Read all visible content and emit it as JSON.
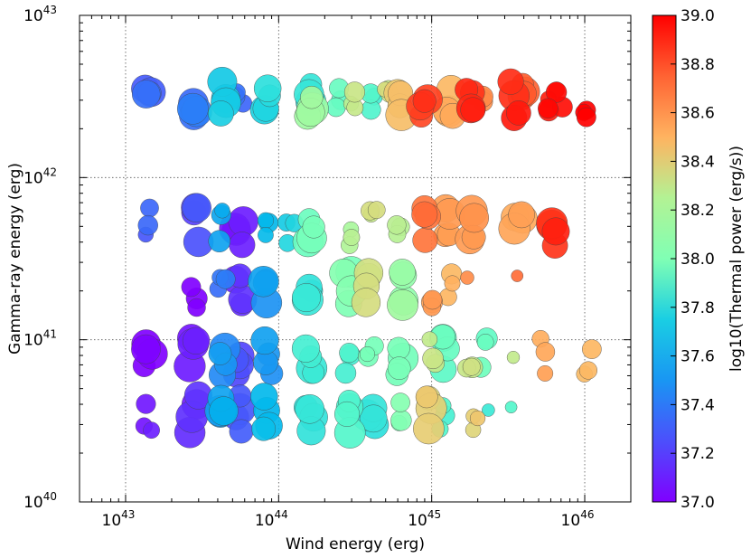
{
  "chart_data": {
    "type": "scatter",
    "title": "",
    "xlabel": "Wind energy (erg)",
    "ylabel": "Gamma-ray energy (erg)",
    "xscale": "log",
    "yscale": "log",
    "xlim": [
      5e+42,
      2e+46
    ],
    "ylim": [
      1e+40,
      1e+43
    ],
    "x_ticks": [
      {
        "base": "10",
        "exp": "43"
      },
      {
        "base": "10",
        "exp": "44"
      },
      {
        "base": "10",
        "exp": "45"
      },
      {
        "base": "10",
        "exp": "46"
      }
    ],
    "y_ticks": [
      {
        "base": "10",
        "exp": "40"
      },
      {
        "base": "10",
        "exp": "41"
      },
      {
        "base": "10",
        "exp": "42"
      },
      {
        "base": "10",
        "exp": "43"
      }
    ],
    "grid": true,
    "colorbar": {
      "label": "log10(Thermal power (erg/s))",
      "range": [
        37.0,
        39.0
      ],
      "ticks": [
        "37.0",
        "37.2",
        "37.4",
        "37.6",
        "37.8",
        "38.0",
        "38.2",
        "38.4",
        "38.6",
        "38.8",
        "39.0"
      ],
      "colormap": "rainbow"
    },
    "clusters": [
      {
        "name": "row-1",
        "y_center": 3e+42,
        "y_spread": 0.12,
        "points": [
          {
            "x": 1.4e+43,
            "c": 37.25,
            "s": 3
          },
          {
            "x": 2.8e+43,
            "c": 37.3,
            "s": 3
          },
          {
            "x": 4.3e+43,
            "c": 37.6,
            "s": 3
          },
          {
            "x": 5.5e+43,
            "c": 37.3,
            "s": 2
          },
          {
            "x": 8.5e+43,
            "c": 37.65,
            "s": 3
          },
          {
            "x": 1.6e+44,
            "c": 37.7,
            "s": 3
          },
          {
            "x": 1.6e+44,
            "c": 38.1,
            "s": 3
          },
          {
            "x": 3e+44,
            "c": 38.25,
            "s": 2
          },
          {
            "x": 4e+44,
            "c": 37.8,
            "s": 2
          },
          {
            "x": 6.3e+44,
            "c": 38.45,
            "s": 3
          },
          {
            "x": 9e+44,
            "c": 38.85,
            "s": 3
          },
          {
            "x": 1.3e+45,
            "c": 38.5,
            "s": 3
          },
          {
            "x": 1.8e+45,
            "c": 38.9,
            "s": 3
          },
          {
            "x": 2.2e+45,
            "c": 38.6,
            "s": 2
          },
          {
            "x": 3.5e+45,
            "c": 38.9,
            "s": 3
          },
          {
            "x": 3.8e+45,
            "c": 38.75,
            "s": 3
          },
          {
            "x": 5.5e+45,
            "c": 38.95,
            "s": 2
          },
          {
            "x": 6.8e+45,
            "c": 38.95,
            "s": 2
          },
          {
            "x": 1.05e+46,
            "c": 39.0,
            "s": 2
          },
          {
            "x": 2.5e+44,
            "c": 37.9,
            "s": 2
          },
          {
            "x": 5e+44,
            "c": 38.3,
            "s": 2
          }
        ]
      },
      {
        "name": "row-2",
        "y_center": 5e+41,
        "y_spread": 0.12,
        "points": [
          {
            "x": 1.4e+43,
            "c": 37.25,
            "s": 2
          },
          {
            "x": 2.8e+43,
            "c": 37.2,
            "s": 3
          },
          {
            "x": 4.3e+43,
            "c": 37.45,
            "s": 2
          },
          {
            "x": 5.5e+43,
            "c": 37.05,
            "s": 3
          },
          {
            "x": 8.5e+43,
            "c": 37.55,
            "s": 2
          },
          {
            "x": 1.6e+44,
            "c": 37.95,
            "s": 3
          },
          {
            "x": 3e+44,
            "c": 38.2,
            "s": 2
          },
          {
            "x": 4.2e+44,
            "c": 38.3,
            "s": 2
          },
          {
            "x": 6.3e+44,
            "c": 38.2,
            "s": 2
          },
          {
            "x": 9e+44,
            "c": 38.7,
            "s": 3
          },
          {
            "x": 1.3e+45,
            "c": 38.55,
            "s": 3
          },
          {
            "x": 1.9e+45,
            "c": 38.6,
            "s": 3
          },
          {
            "x": 3.7e+45,
            "c": 38.55,
            "s": 3
          },
          {
            "x": 6.5e+45,
            "c": 38.9,
            "s": 3
          },
          {
            "x": 1.2e+44,
            "c": 37.6,
            "s": 2
          }
        ]
      },
      {
        "name": "row-3",
        "y_center": 2e+41,
        "y_spread": 0.12,
        "points": [
          {
            "x": 2.8e+43,
            "c": 37.0,
            "s": 2
          },
          {
            "x": 4.3e+43,
            "c": 37.3,
            "s": 2
          },
          {
            "x": 5.5e+43,
            "c": 37.1,
            "s": 3
          },
          {
            "x": 8.5e+43,
            "c": 37.4,
            "s": 3
          },
          {
            "x": 1.6e+44,
            "c": 37.7,
            "s": 3
          },
          {
            "x": 2.8e+44,
            "c": 38.0,
            "s": 3
          },
          {
            "x": 3.8e+44,
            "c": 38.3,
            "s": 3
          },
          {
            "x": 6.3e+44,
            "c": 38.1,
            "s": 3
          },
          {
            "x": 1e+45,
            "c": 38.6,
            "s": 2
          },
          {
            "x": 1.3e+45,
            "c": 38.5,
            "s": 2
          },
          {
            "x": 1.8e+45,
            "c": 38.65,
            "s": 1
          },
          {
            "x": 3.5e+45,
            "c": 38.7,
            "s": 1
          }
        ]
      },
      {
        "name": "row-4",
        "y_center": 8e+40,
        "y_spread": 0.12,
        "points": [
          {
            "x": 1.4e+43,
            "c": 37.0,
            "s": 3
          },
          {
            "x": 2.8e+43,
            "c": 37.05,
            "s": 3
          },
          {
            "x": 4.3e+43,
            "c": 37.4,
            "s": 3
          },
          {
            "x": 5.5e+43,
            "c": 37.2,
            "s": 3
          },
          {
            "x": 8.5e+43,
            "c": 37.4,
            "s": 3
          },
          {
            "x": 1.6e+44,
            "c": 37.75,
            "s": 3
          },
          {
            "x": 2.8e+44,
            "c": 37.8,
            "s": 2
          },
          {
            "x": 4e+44,
            "c": 38.0,
            "s": 2
          },
          {
            "x": 6.3e+44,
            "c": 37.95,
            "s": 3
          },
          {
            "x": 1e+45,
            "c": 38.3,
            "s": 2
          },
          {
            "x": 1.2e+45,
            "c": 37.9,
            "s": 3
          },
          {
            "x": 1.8e+45,
            "c": 38.3,
            "s": 2
          },
          {
            "x": 2.2e+45,
            "c": 37.9,
            "s": 2
          },
          {
            "x": 3.3e+45,
            "c": 38.3,
            "s": 1
          },
          {
            "x": 5.3e+45,
            "c": 38.55,
            "s": 2
          },
          {
            "x": 1.05e+46,
            "c": 38.5,
            "s": 2
          }
        ]
      },
      {
        "name": "row-5",
        "y_center": 3.5e+40,
        "y_spread": 0.12,
        "points": [
          {
            "x": 1.4e+43,
            "c": 37.05,
            "s": 2
          },
          {
            "x": 2.8e+43,
            "c": 37.1,
            "s": 3
          },
          {
            "x": 4.3e+43,
            "c": 37.45,
            "s": 3
          },
          {
            "x": 5.5e+43,
            "c": 37.2,
            "s": 3
          },
          {
            "x": 8.5e+43,
            "c": 37.5,
            "s": 3
          },
          {
            "x": 1.6e+44,
            "c": 37.7,
            "s": 3
          },
          {
            "x": 2.9e+44,
            "c": 37.8,
            "s": 3
          },
          {
            "x": 4e+44,
            "c": 37.7,
            "s": 3
          },
          {
            "x": 6.3e+44,
            "c": 38.0,
            "s": 2
          },
          {
            "x": 9.5e+44,
            "c": 38.4,
            "s": 3
          },
          {
            "x": 1.2e+45,
            "c": 37.8,
            "s": 2
          },
          {
            "x": 1.9e+45,
            "c": 38.4,
            "s": 2
          },
          {
            "x": 2.2e+45,
            "c": 37.75,
            "s": 1
          },
          {
            "x": 3.5e+45,
            "c": 37.8,
            "s": 1
          }
        ]
      }
    ]
  }
}
